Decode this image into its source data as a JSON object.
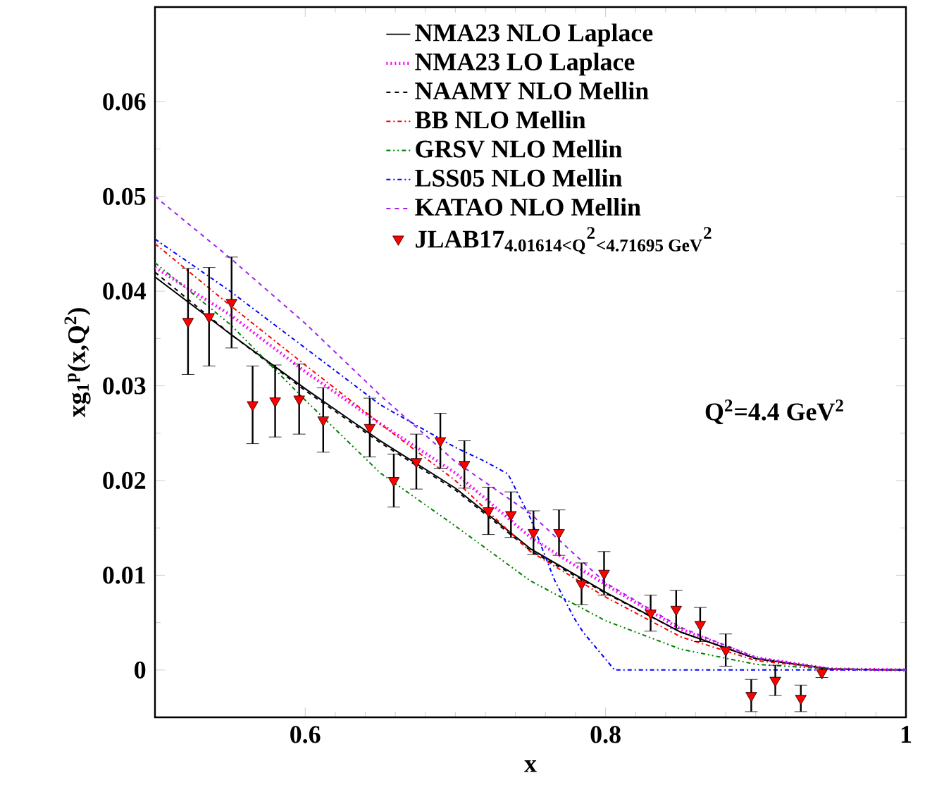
{
  "chart_data": {
    "type": "line",
    "xlabel": "x",
    "ylabel": "xg$_{1}$$^{p}$(x,Q$^{2}$)",
    "xlim": [
      0.5,
      1
    ],
    "ylim": [
      -0.005,
      0.07
    ],
    "xticks": [
      0.6,
      0.8,
      1
    ],
    "yticks": [
      0,
      0.01,
      0.02,
      0.03,
      0.04,
      0.05,
      0.06
    ],
    "legend": "top right",
    "annotations": [
      "Q$^{2}$=4.4 GeV$^{2}$"
    ],
    "series": [
      {
        "name": "NMA23 NLO Laplace",
        "color": "#000000",
        "line_style": "solid",
        "x": [
          0.5,
          0.55,
          0.6,
          0.65,
          0.7,
          0.75,
          0.8,
          0.85,
          0.9,
          0.95,
          1
        ],
        "values": [
          0.0415,
          0.0355,
          0.0297,
          0.0242,
          0.0192,
          0.0128,
          0.0082,
          0.004,
          0.0012,
          0.0001,
          0
        ]
      },
      {
        "name": "NMA23 LO Laplace",
        "color": "#ff00ff",
        "line_style": "dotted",
        "x": [
          0.5,
          0.55,
          0.6,
          0.65,
          0.7,
          0.75,
          0.8,
          0.85,
          0.9,
          0.95,
          1
        ],
        "values": [
          0.0425,
          0.0375,
          0.0315,
          0.026,
          0.0208,
          0.014,
          0.009,
          0.0043,
          0.0013,
          0.0001,
          0
        ]
      },
      {
        "name": "NAAMY NLO Mellin",
        "color": "#000000",
        "line_style": "dashed",
        "x": [
          0.5,
          0.55,
          0.6,
          0.65,
          0.7,
          0.75,
          0.8,
          0.85,
          0.9,
          0.95,
          1
        ],
        "values": [
          0.042,
          0.0355,
          0.0295,
          0.024,
          0.019,
          0.0126,
          0.0081,
          0.004,
          0.0012,
          0.0001,
          0
        ]
      },
      {
        "name": "BB NLO Mellin",
        "color": "#ff0000",
        "line_style": "dashdot",
        "x": [
          0.5,
          0.55,
          0.6,
          0.65,
          0.7,
          0.75,
          0.8,
          0.85,
          0.9,
          0.95,
          1
        ],
        "values": [
          0.045,
          0.0385,
          0.0322,
          0.026,
          0.02,
          0.0125,
          0.0077,
          0.0035,
          0.001,
          0.0001,
          0
        ]
      },
      {
        "name": "GRSV NLO Mellin",
        "color": "#008000",
        "line_style": "dashdotdot",
        "x": [
          0.5,
          0.55,
          0.6,
          0.65,
          0.7,
          0.75,
          0.8,
          0.85,
          0.9,
          0.95,
          1
        ],
        "values": [
          0.043,
          0.0365,
          0.0285,
          0.0208,
          0.0152,
          0.0094,
          0.0052,
          0.0022,
          0.0006,
          0.0001,
          0
        ]
      },
      {
        "name": "LSS05 NLO Mellin",
        "color": "#0000ff",
        "line_style": "dashdot",
        "x": [
          0.5,
          0.55,
          0.6,
          0.65,
          0.7,
          0.72,
          0.735,
          0.75,
          0.766,
          0.779,
          0.785,
          0.806,
          1
        ],
        "values": [
          0.0455,
          0.04,
          0.034,
          0.028,
          0.0235,
          0.022,
          0.0207,
          0.016,
          0.0095,
          0.0055,
          0.004,
          0,
          0
        ]
      },
      {
        "name": "KATAO NLO Mellin",
        "color": "#a020f0",
        "line_style": "dashed",
        "x": [
          0.5,
          0.55,
          0.6,
          0.65,
          0.7,
          0.75,
          0.8,
          0.85,
          0.9,
          0.95,
          1
        ],
        "values": [
          0.05,
          0.0435,
          0.0366,
          0.029,
          0.022,
          0.0165,
          0.0092,
          0.0045,
          0.0013,
          0.0001,
          0
        ]
      },
      {
        "name": "JLAB17$_{4.01614<Q}$$^{2}$$_{<4.71695 GeV}$$^{2}$",
        "type": "scatter",
        "color": "#ff0000",
        "marker": "triangle",
        "x": [
          0.522,
          0.536,
          0.551,
          0.565,
          0.58,
          0.596,
          0.612,
          0.643,
          0.659,
          0.674,
          0.69,
          0.706,
          0.722,
          0.737,
          0.752,
          0.769,
          0.784,
          0.799,
          0.83,
          0.847,
          0.863,
          0.88,
          0.897,
          0.913,
          0.93,
          0.944
        ],
        "values": [
          0.0368,
          0.0373,
          0.0388,
          0.028,
          0.0284,
          0.0286,
          0.0264,
          0.0256,
          0.02,
          0.022,
          0.0242,
          0.0217,
          0.0168,
          0.0164,
          0.0145,
          0.0145,
          0.0091,
          0.0102,
          0.006,
          0.0064,
          0.0048,
          0.0021,
          -0.0027,
          -0.0011,
          -0.003,
          -0.0003
        ],
        "errors": [
          0.0056,
          0.0052,
          0.0048,
          0.0041,
          0.0038,
          0.0037,
          0.0034,
          0.0031,
          0.0028,
          0.0029,
          0.0029,
          0.0025,
          0.0025,
          0.0024,
          0.0023,
          0.0024,
          0.0022,
          0.0023,
          0.0019,
          0.002,
          0.0018,
          0.0017,
          0.0017,
          0.0016,
          0.0014,
          0.0005
        ]
      }
    ]
  }
}
